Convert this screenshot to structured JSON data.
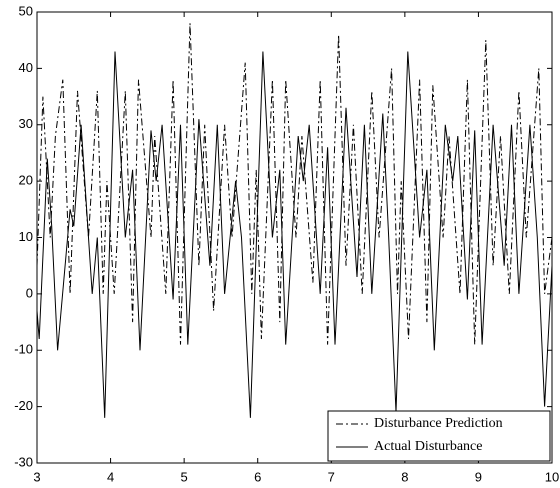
{
  "chart_data": {
    "type": "line",
    "xlim": [
      3,
      10
    ],
    "xticks": [
      3,
      4,
      5,
      6,
      7,
      8,
      9,
      10
    ],
    "ylim": [
      -30,
      50
    ],
    "yticks": [
      -30,
      -20,
      -10,
      0,
      10,
      20,
      30,
      40,
      50
    ],
    "legend": "lower right",
    "series": [
      {
        "name": "Disturbance Prediction",
        "color": "#000000",
        "style": "dashdot",
        "x": [
          3.0,
          3.08,
          3.18,
          3.25,
          3.35,
          3.45,
          3.55,
          3.7,
          3.82,
          3.9,
          3.95,
          4.05,
          4.2,
          4.3,
          4.38,
          4.55,
          4.6,
          4.75,
          4.85,
          4.95,
          5.08,
          5.2,
          5.28,
          5.4,
          5.55,
          5.65,
          5.83,
          5.92,
          5.98,
          6.05,
          6.2,
          6.3,
          6.38,
          6.52,
          6.6,
          6.75,
          6.85,
          6.95,
          7.1,
          7.2,
          7.3,
          7.42,
          7.55,
          7.65,
          7.82,
          7.9,
          7.95,
          8.05,
          8.2,
          8.3,
          8.38,
          8.52,
          8.6,
          8.75,
          8.85,
          8.95,
          9.1,
          9.2,
          9.3,
          9.42,
          9.55,
          9.65,
          9.82,
          9.9,
          10.0
        ],
        "values": [
          5,
          35,
          10,
          28,
          38,
          0,
          36,
          10,
          36,
          0,
          20,
          0,
          36,
          -5,
          38,
          10,
          28,
          0,
          38,
          -9,
          48,
          5,
          30,
          -3,
          30,
          10,
          41,
          0,
          22,
          -8,
          38,
          -5,
          38,
          10,
          28,
          2,
          38,
          -9,
          46,
          5,
          30,
          0,
          36,
          10,
          40,
          0,
          20,
          -8,
          38,
          -5,
          37,
          10,
          28,
          0,
          38,
          -9,
          45,
          5,
          28,
          0,
          36,
          10,
          40,
          0,
          10
        ]
      },
      {
        "name": "Actual Disturbance",
        "color": "#000000",
        "style": "solid",
        "x": [
          3.0,
          3.03,
          3.14,
          3.2,
          3.28,
          3.45,
          3.5,
          3.6,
          3.75,
          3.82,
          3.92,
          4.06,
          4.2,
          4.3,
          4.4,
          4.55,
          4.62,
          4.7,
          4.85,
          4.95,
          5.05,
          5.2,
          5.35,
          5.45,
          5.55,
          5.7,
          5.78,
          5.9,
          6.07,
          6.2,
          6.3,
          6.38,
          6.55,
          6.62,
          6.7,
          6.85,
          6.95,
          7.05,
          7.2,
          7.35,
          7.45,
          7.55,
          7.7,
          7.78,
          7.88,
          8.04,
          8.2,
          8.3,
          8.4,
          8.55,
          8.65,
          8.72,
          8.85,
          8.95,
          9.05,
          9.2,
          9.35,
          9.45,
          9.55,
          9.7,
          9.8,
          9.9,
          10.0
        ],
        "values": [
          -3,
          -8,
          24,
          12,
          -10,
          15,
          12,
          30,
          0,
          10,
          -22,
          43,
          10,
          22,
          -10,
          29,
          20,
          30,
          -1,
          30,
          -9,
          31,
          5,
          30,
          0,
          20,
          10,
          -22,
          43,
          10,
          22,
          -9,
          28,
          20,
          30,
          0,
          26,
          -9,
          33,
          3,
          30,
          0,
          32,
          10,
          -21,
          43,
          10,
          22,
          -10,
          30,
          20,
          28,
          -1,
          29,
          -9,
          30,
          5,
          30,
          0,
          30,
          10,
          -20,
          5
        ]
      }
    ]
  }
}
